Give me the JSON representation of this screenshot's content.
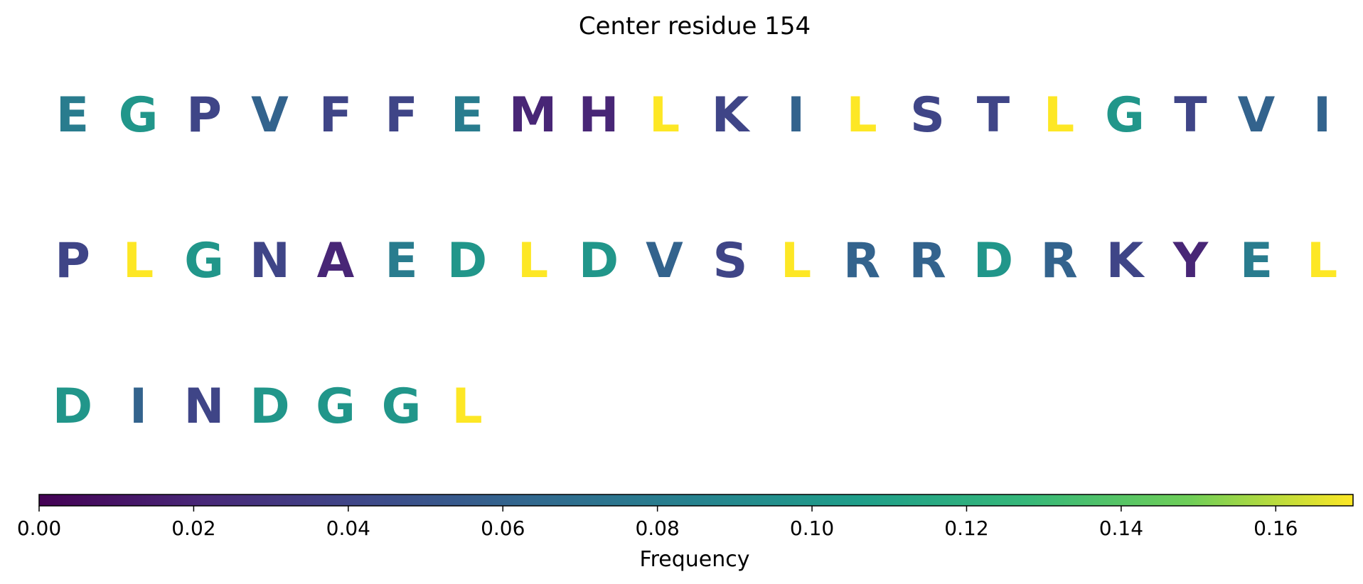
{
  "chart_data": {
    "type": "heatmap",
    "title": "Center residue 154",
    "colormap": "viridis",
    "colorbar": {
      "label": "Frequency",
      "range": [
        0,
        0.17
      ],
      "ticks": [
        "0.00",
        "0.02",
        "0.04",
        "0.06",
        "0.08",
        "0.10",
        "0.12",
        "0.14",
        "0.16"
      ]
    },
    "rows": [
      [
        {
          "residue": "E",
          "frequency": 0.08
        },
        {
          "residue": "G",
          "frequency": 0.1
        },
        {
          "residue": "P",
          "frequency": 0.04
        },
        {
          "residue": "V",
          "frequency": 0.06
        },
        {
          "residue": "F",
          "frequency": 0.04
        },
        {
          "residue": "F",
          "frequency": 0.04
        },
        {
          "residue": "E",
          "frequency": 0.08
        },
        {
          "residue": "M",
          "frequency": 0.02
        },
        {
          "residue": "H",
          "frequency": 0.02
        },
        {
          "residue": "L",
          "frequency": 0.17
        },
        {
          "residue": "K",
          "frequency": 0.04
        },
        {
          "residue": "I",
          "frequency": 0.06
        },
        {
          "residue": "L",
          "frequency": 0.17
        },
        {
          "residue": "S",
          "frequency": 0.04
        },
        {
          "residue": "T",
          "frequency": 0.04
        },
        {
          "residue": "L",
          "frequency": 0.17
        },
        {
          "residue": "G",
          "frequency": 0.1
        },
        {
          "residue": "T",
          "frequency": 0.04
        },
        {
          "residue": "V",
          "frequency": 0.06
        },
        {
          "residue": "I",
          "frequency": 0.06
        }
      ],
      [
        {
          "residue": "P",
          "frequency": 0.04
        },
        {
          "residue": "L",
          "frequency": 0.17
        },
        {
          "residue": "G",
          "frequency": 0.1
        },
        {
          "residue": "N",
          "frequency": 0.04
        },
        {
          "residue": "A",
          "frequency": 0.02
        },
        {
          "residue": "E",
          "frequency": 0.08
        },
        {
          "residue": "D",
          "frequency": 0.1
        },
        {
          "residue": "L",
          "frequency": 0.17
        },
        {
          "residue": "D",
          "frequency": 0.1
        },
        {
          "residue": "V",
          "frequency": 0.06
        },
        {
          "residue": "S",
          "frequency": 0.04
        },
        {
          "residue": "L",
          "frequency": 0.17
        },
        {
          "residue": "R",
          "frequency": 0.06
        },
        {
          "residue": "R",
          "frequency": 0.06
        },
        {
          "residue": "D",
          "frequency": 0.1
        },
        {
          "residue": "R",
          "frequency": 0.06
        },
        {
          "residue": "K",
          "frequency": 0.04
        },
        {
          "residue": "Y",
          "frequency": 0.02
        },
        {
          "residue": "E",
          "frequency": 0.08
        },
        {
          "residue": "L",
          "frequency": 0.17
        }
      ],
      [
        {
          "residue": "D",
          "frequency": 0.1
        },
        {
          "residue": "I",
          "frequency": 0.06
        },
        {
          "residue": "N",
          "frequency": 0.04
        },
        {
          "residue": "D",
          "frequency": 0.1
        },
        {
          "residue": "G",
          "frequency": 0.1
        },
        {
          "residue": "G",
          "frequency": 0.1
        },
        {
          "residue": "L",
          "frequency": 0.17
        }
      ]
    ]
  }
}
